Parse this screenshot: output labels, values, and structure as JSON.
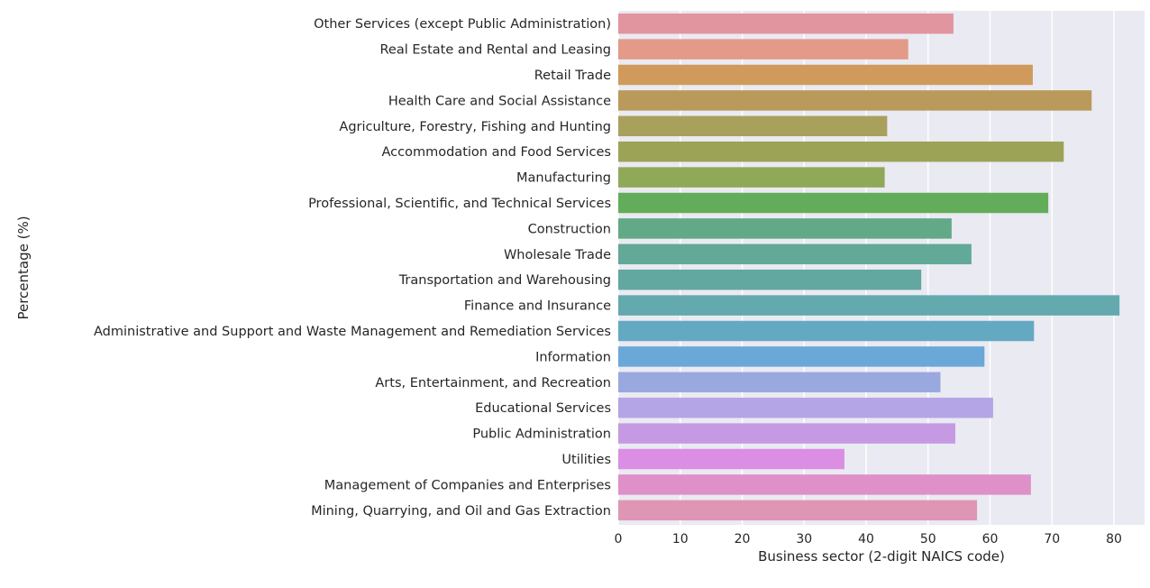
{
  "chart_data": {
    "type": "bar",
    "orientation": "horizontal",
    "title": "",
    "xlabel": "Business sector (2-digit NAICS code)",
    "ylabel": "Percentage (%)",
    "xlim": [
      0,
      85
    ],
    "xticks": [
      0,
      10,
      20,
      30,
      40,
      50,
      60,
      70,
      80
    ],
    "grid": true,
    "background": "#eaeaf2",
    "categories": [
      "Other Services (except Public Administration)",
      "Real Estate and Rental and Leasing",
      "Retail Trade",
      "Health Care and Social Assistance",
      "Agriculture, Forestry, Fishing and Hunting",
      "Accommodation and Food Services",
      "Manufacturing",
      "Professional, Scientific, and Technical Services",
      "Construction",
      "Wholesale Trade",
      "Transportation and Warehousing",
      "Finance and Insurance",
      "Administrative and Support and Waste Management and Remediation Services",
      "Information",
      "Arts, Entertainment, and Recreation",
      "Educational Services",
      "Public Administration",
      "Utilities",
      "Management of Companies and Enterprises",
      "Mining, Quarrying, and Oil and Gas Extraction"
    ],
    "values": [
      54.1,
      46.8,
      66.9,
      76.4,
      43.4,
      71.9,
      43.0,
      69.4,
      53.8,
      57.0,
      48.9,
      80.9,
      67.1,
      59.1,
      52.0,
      60.5,
      54.4,
      36.5,
      66.6,
      57.9
    ],
    "colors": [
      "#e1959f",
      "#e39a88",
      "#cf9a5c",
      "#b99a5a",
      "#a9a05c",
      "#9ca356",
      "#8fa958",
      "#63ad5a",
      "#62a987",
      "#62a998",
      "#62a7a0",
      "#63a9ae",
      "#64a9c2",
      "#6aa8d8",
      "#99a9e0",
      "#b4a5e6",
      "#c69ae3",
      "#dc8de4",
      "#df90c8",
      "#df96b5"
    ]
  }
}
